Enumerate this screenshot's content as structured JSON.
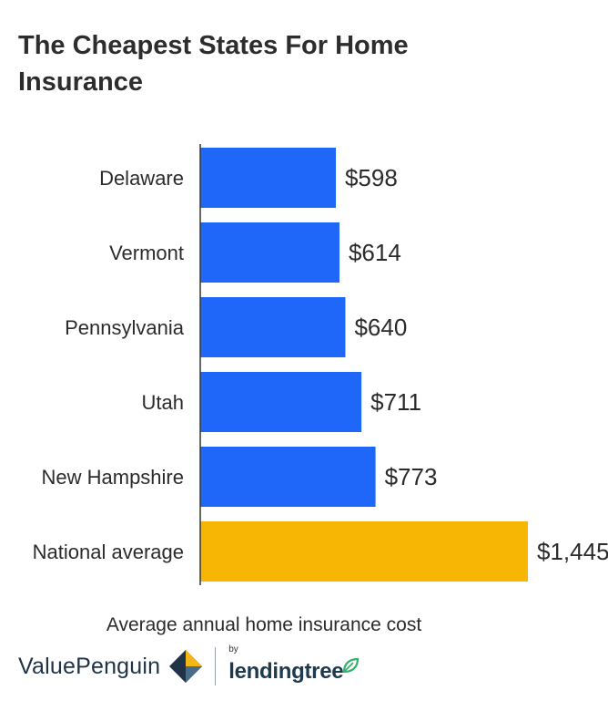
{
  "title": "The Cheapest States For Home Insurance",
  "caption": "Average annual home insurance cost",
  "brand": {
    "valuepenguin": "ValuePenguin",
    "by": "by",
    "lendingtree": "lendingtree"
  },
  "colors": {
    "bar": "#1f67f8",
    "highlight": "#f8b604",
    "axis": "#333333",
    "text": "#2b2b2b"
  },
  "chart_data": {
    "type": "bar",
    "orientation": "horizontal",
    "title": "The Cheapest States For Home Insurance",
    "xlabel": "Average annual home insurance cost",
    "ylabel": "",
    "categories": [
      "Delaware",
      "Vermont",
      "Pennsylvania",
      "Utah",
      "New Hampshire",
      "National average"
    ],
    "values": [
      598,
      614,
      640,
      711,
      773,
      1445
    ],
    "value_labels": [
      "$598",
      "$614",
      "$640",
      "$711",
      "$773",
      "$1,445"
    ],
    "highlight_category": "National average",
    "xlim": [
      0,
      1445
    ],
    "grid": false,
    "legend": "none"
  }
}
